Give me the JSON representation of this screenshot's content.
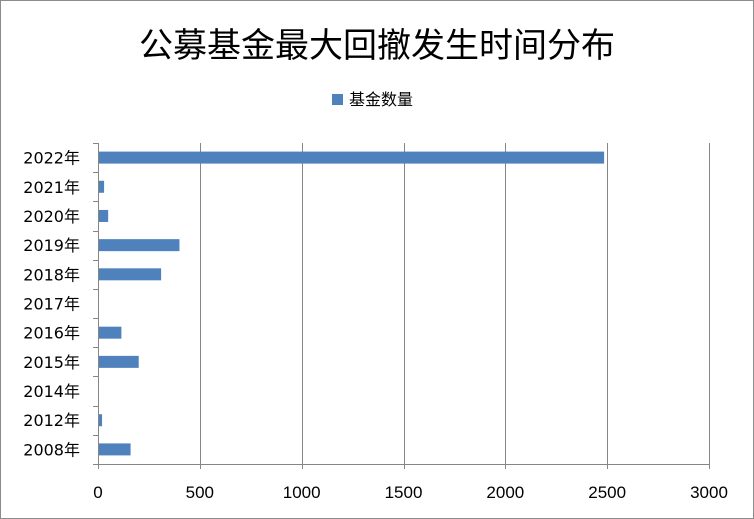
{
  "chart_data": {
    "type": "bar",
    "orientation": "horizontal",
    "title": "公募基金最大回撤发生时间分布",
    "categories": [
      "2022年",
      "2021年",
      "2020年",
      "2019年",
      "2018年",
      "2017年",
      "2016年",
      "2015年",
      "2014年",
      "2012年",
      "2008年"
    ],
    "series": [
      {
        "name": "基金数量",
        "values": [
          2480,
          25,
          45,
          395,
          305,
          0,
          110,
          195,
          0,
          15,
          155
        ]
      }
    ],
    "xlim": [
      0,
      3000
    ],
    "xticks": [
      0,
      500,
      1000,
      1500,
      2000,
      2500,
      3000
    ],
    "xlabel": "",
    "ylabel": "",
    "grid": "vertical",
    "legend": "top",
    "colors": {
      "bar": "#4f81bd",
      "grid": "#868686",
      "axis": "#868686"
    }
  }
}
